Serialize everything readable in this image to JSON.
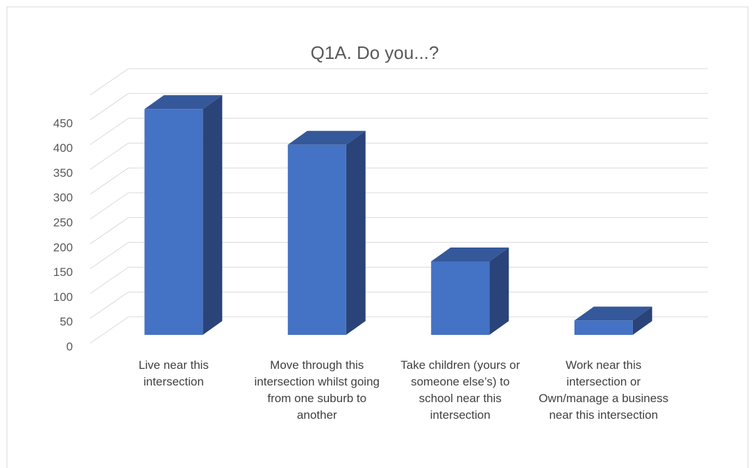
{
  "chart_data": {
    "type": "bar3d",
    "title": "Q1A. Do you...?",
    "categories": [
      "Live near this intersection",
      "Move through this intersection whilst going from one suburb to another",
      "Take children (yours or someone else’s) to school near this intersection",
      "Work near this intersection or Own/manage a business near this intersection"
    ],
    "values": [
      455,
      383,
      148,
      29
    ],
    "color": "#4472c4",
    "ylim": [
      0,
      500
    ],
    "yticks": [
      0,
      50,
      100,
      150,
      200,
      250,
      300,
      350,
      400,
      450
    ],
    "grid": true
  }
}
